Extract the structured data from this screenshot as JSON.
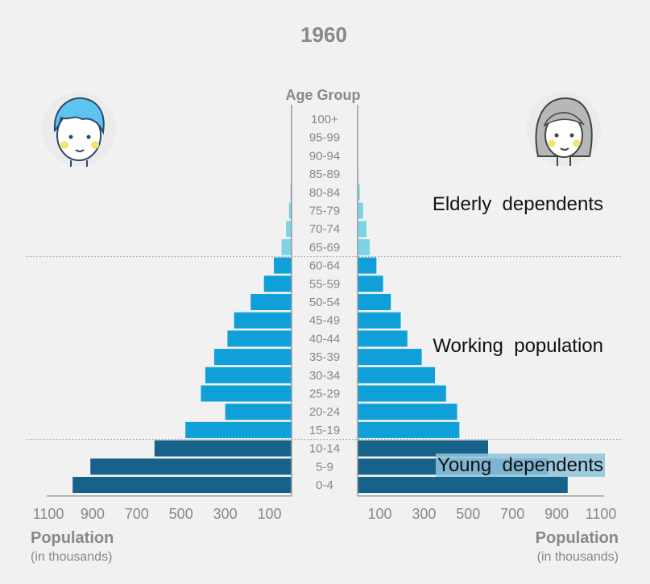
{
  "chart_data": {
    "type": "bar",
    "orientation": "horizontal",
    "title": "1960",
    "category_axis_label": "Age Group",
    "categories": [
      "0-4",
      "5-9",
      "10-14",
      "15-19",
      "20-24",
      "25-29",
      "30-34",
      "35-39",
      "40-44",
      "45-49",
      "50-54",
      "55-59",
      "60-64",
      "65-69",
      "70-74",
      "75-79",
      "80-84",
      "85-89",
      "90-94",
      "95-99",
      "100+"
    ],
    "series": [
      {
        "side": "left",
        "values": [
          990,
          910,
          620,
          480,
          300,
          410,
          390,
          350,
          290,
          260,
          185,
          125,
          80,
          45,
          25,
          12,
          5,
          2,
          1,
          0,
          0
        ]
      },
      {
        "side": "right",
        "values": [
          950,
          860,
          590,
          460,
          450,
          400,
          350,
          290,
          225,
          195,
          150,
          115,
          85,
          55,
          40,
          25,
          10,
          4,
          1,
          0,
          0
        ]
      }
    ],
    "colors": {
      "young": "#16628b",
      "working": "#0f9fd9",
      "elderly": "#7dd3e6",
      "young_highlight": "#8fc3db"
    },
    "x_ticks_left": [
      "1100",
      "900",
      "700",
      "500",
      "300",
      "100"
    ],
    "x_ticks_right": [
      "100",
      "300",
      "500",
      "700",
      "900",
      "1100"
    ],
    "x_tick_values": [
      1100,
      900,
      700,
      500,
      300,
      100
    ],
    "xlim": [
      0,
      1100
    ],
    "xlabel_left": "Population",
    "xlabel_left_sub": "(in thousands)",
    "xlabel_right": "Population",
    "xlabel_right_sub": "(in thousands)",
    "groups": [
      {
        "label": "Elderly  dependents",
        "from": "65-69",
        "to": "100+"
      },
      {
        "label": "Working  population",
        "from": "15-19",
        "to": "60-64"
      },
      {
        "label": "Young  dependents",
        "from": "0-4",
        "to": "10-14"
      }
    ],
    "icons": [
      "boy-face-icon",
      "girl-face-icon"
    ]
  }
}
